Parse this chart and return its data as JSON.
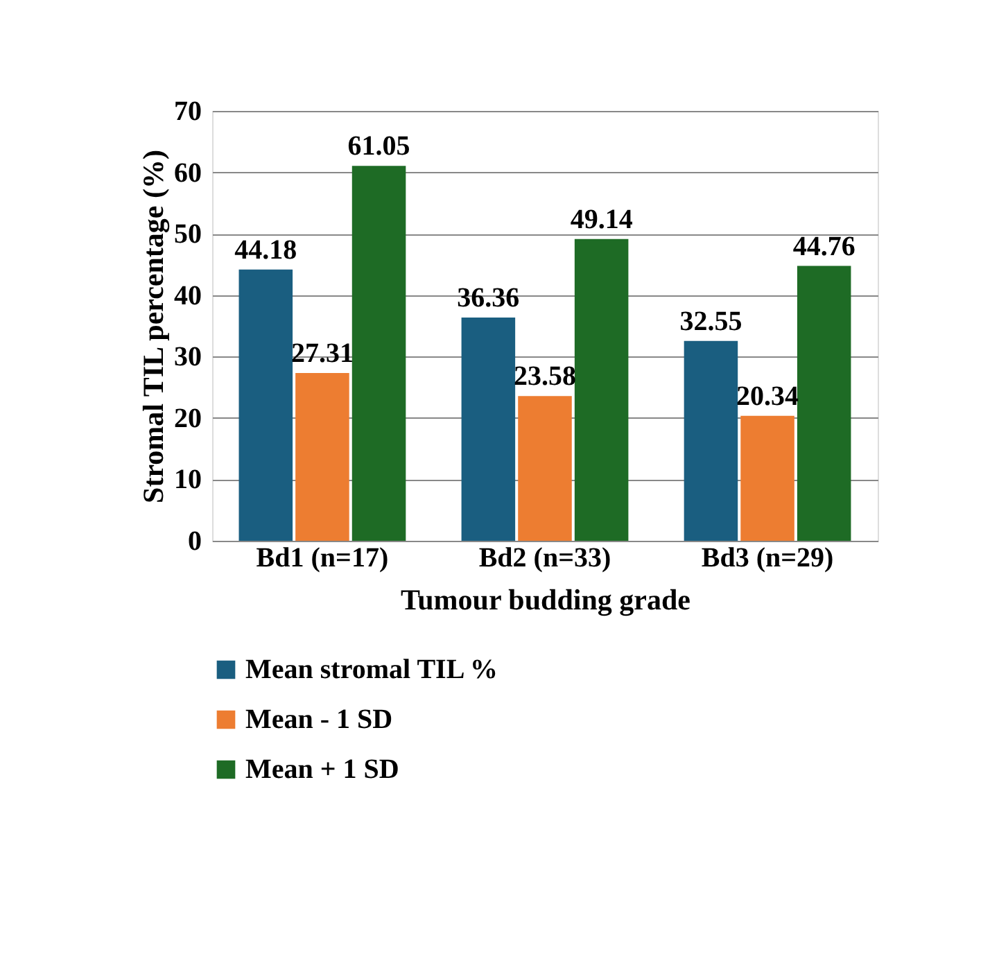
{
  "chart_data": {
    "type": "bar",
    "xlabel": "Tumour budding grade",
    "ylabel": "Stromal TIL percentage (%)",
    "categories": [
      "Bd1 (n=17)",
      "Bd2 (n=33)",
      "Bd3 (n=29)"
    ],
    "series": [
      {
        "name": "Mean stromal TIL %",
        "color": "#1a5e80",
        "values": [
          44.18,
          36.36,
          32.55
        ]
      },
      {
        "name": "Mean - 1 SD",
        "color": "#ed7d31",
        "values": [
          27.31,
          23.58,
          20.34
        ]
      },
      {
        "name": "Mean + 1 SD",
        "color": "#1e6b25",
        "values": [
          61.05,
          49.14,
          44.76
        ]
      }
    ],
    "ylim": [
      0,
      70
    ],
    "yticks": [
      0,
      10,
      20,
      30,
      40,
      50,
      60,
      70
    ],
    "grid": "y",
    "legend": "bottom",
    "data_labels": true
  }
}
